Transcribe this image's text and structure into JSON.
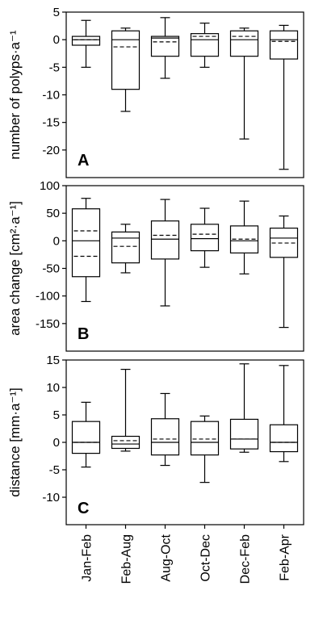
{
  "categories": [
    "Jan-Feb",
    "Feb-Aug",
    "Aug-Oct",
    "Oct-Dec",
    "Dec-Feb",
    "Feb-Apr"
  ],
  "chart_data": [
    {
      "type": "box",
      "panel": "A",
      "ylabel": "number of polyps·a⁻¹",
      "ylim": [
        -25,
        5
      ],
      "yticks": [
        5,
        0,
        -5,
        -10,
        -15,
        -20
      ],
      "boxes": [
        {
          "category": "Jan-Feb",
          "whisker_low": -5,
          "q1": -1,
          "median": 0,
          "mean": 0,
          "q3": 0.6,
          "whisker_high": 3.5
        },
        {
          "category": "Feb-Aug",
          "whisker_low": -13,
          "q1": -9,
          "median": 0,
          "mean": -1.3,
          "q3": 1.6,
          "whisker_high": 2.1
        },
        {
          "category": "Aug-Oct",
          "whisker_low": -7,
          "q1": -3,
          "median": 0.3,
          "mean": -0.4,
          "q3": 0.6,
          "whisker_high": 4
        },
        {
          "category": "Oct-Dec",
          "whisker_low": -5,
          "q1": -3,
          "median": 0,
          "mean": 0.6,
          "q3": 1.1,
          "whisker_high": 3
        },
        {
          "category": "Dec-Feb",
          "whisker_low": -18,
          "q1": -3,
          "median": 0,
          "mean": 0.6,
          "q3": 1.6,
          "whisker_high": 2.1
        },
        {
          "category": "Feb-Apr",
          "whisker_low": -23.5,
          "q1": -3.5,
          "median": 0,
          "mean": -0.3,
          "q3": 1.6,
          "whisker_high": 2.6
        }
      ]
    },
    {
      "type": "box",
      "panel": "B",
      "ylabel": "area change [cm²·a⁻¹]",
      "ylim": [
        -200,
        100
      ],
      "yticks": [
        100,
        50,
        0,
        -50,
        -100,
        -150
      ],
      "boxes": [
        {
          "category": "Jan-Feb",
          "whisker_low": -110,
          "q1": -65,
          "median": 0,
          "mean": 18,
          "mean2": -28,
          "q3": 58,
          "whisker_high": 77
        },
        {
          "category": "Feb-Aug",
          "whisker_low": -58,
          "q1": -40,
          "median": 5,
          "mean": -10,
          "q3": 16,
          "whisker_high": 30
        },
        {
          "category": "Aug-Oct",
          "whisker_low": -118,
          "q1": -33,
          "median": 3,
          "mean": 10,
          "q3": 36,
          "whisker_high": 75
        },
        {
          "category": "Oct-Dec",
          "whisker_low": -48,
          "q1": -18,
          "median": 4,
          "mean": 12,
          "q3": 30,
          "whisker_high": 59
        },
        {
          "category": "Dec-Feb",
          "whisker_low": -60,
          "q1": -22,
          "median": 0,
          "mean": 3,
          "q3": 27,
          "whisker_high": 72
        },
        {
          "category": "Feb-Apr",
          "whisker_low": -157,
          "q1": -30,
          "median": 5,
          "mean": -4,
          "q3": 23,
          "whisker_high": 45
        }
      ]
    },
    {
      "type": "box",
      "panel": "C",
      "ylabel": "distance [mm·a⁻¹]",
      "ylim": [
        -15,
        15
      ],
      "yticks": [
        15,
        10,
        5,
        0,
        -5,
        -10
      ],
      "boxes": [
        {
          "category": "Jan-Feb",
          "whisker_low": -4.5,
          "q1": -2,
          "median": 0,
          "mean": 0,
          "q3": 3.8,
          "whisker_high": 7.3
        },
        {
          "category": "Feb-Aug",
          "whisker_low": -1.6,
          "q1": -1.1,
          "median": -0.3,
          "mean": 0.3,
          "q3": 1.1,
          "whisker_high": 13.3
        },
        {
          "category": "Aug-Oct",
          "whisker_low": -4.2,
          "q1": -2.3,
          "median": 0,
          "mean": 0.6,
          "q3": 4.3,
          "whisker_high": 8.9
        },
        {
          "category": "Oct-Dec",
          "whisker_low": -7.3,
          "q1": -2.3,
          "median": 0,
          "mean": 0.6,
          "q3": 3.8,
          "whisker_high": 4.8
        },
        {
          "category": "Dec-Feb",
          "whisker_low": -1.8,
          "q1": -1.2,
          "median": 0.6,
          "mean": 0.6,
          "q3": 4.2,
          "whisker_high": 14.3
        },
        {
          "category": "Feb-Apr",
          "whisker_low": -3.5,
          "q1": -1.7,
          "median": 0,
          "mean": 0,
          "q3": 3.2,
          "whisker_high": 14
        }
      ]
    }
  ]
}
